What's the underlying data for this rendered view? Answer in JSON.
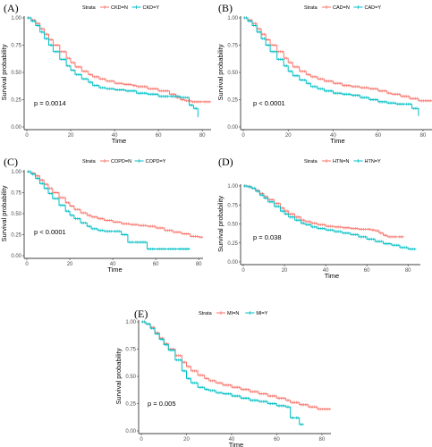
{
  "chart_data": [
    {
      "panel": "(A)",
      "type": "line",
      "legend_title": "Strata",
      "series": [
        {
          "name": "CKD=N",
          "color": "#F8766D",
          "x": [
            0,
            2,
            4,
            6,
            8,
            10,
            12,
            15,
            18,
            20,
            22,
            25,
            28,
            30,
            33,
            36,
            40,
            44,
            48,
            50,
            55,
            60,
            65,
            68,
            70,
            72,
            75,
            80,
            84
          ],
          "y": [
            1.0,
            0.98,
            0.95,
            0.9,
            0.85,
            0.8,
            0.75,
            0.69,
            0.63,
            0.59,
            0.55,
            0.51,
            0.48,
            0.46,
            0.44,
            0.42,
            0.4,
            0.39,
            0.38,
            0.37,
            0.35,
            0.33,
            0.3,
            0.27,
            0.25,
            0.24,
            0.23,
            0.23,
            0.23
          ]
        },
        {
          "name": "CKD=Y",
          "color": "#00BFC4",
          "x": [
            0,
            2,
            4,
            6,
            8,
            10,
            12,
            15,
            18,
            20,
            22,
            25,
            28,
            30,
            33,
            36,
            40,
            45,
            50,
            55,
            60,
            65,
            70,
            74,
            76,
            78
          ],
          "y": [
            1.0,
            0.97,
            0.93,
            0.87,
            0.81,
            0.75,
            0.69,
            0.62,
            0.56,
            0.52,
            0.48,
            0.44,
            0.41,
            0.38,
            0.36,
            0.35,
            0.34,
            0.33,
            0.31,
            0.3,
            0.28,
            0.28,
            0.27,
            0.2,
            0.17,
            0.09
          ]
        }
      ],
      "pvalue": "p = 0.0014",
      "xlabel": "Time",
      "ylabel": "Survival probability",
      "xticks": [
        0,
        20,
        40,
        60,
        80
      ],
      "yticks": [
        "0.00",
        "0.25",
        "0.50",
        "0.75",
        "1.00"
      ],
      "xlim": [
        0,
        84
      ],
      "ylim": [
        0,
        1
      ]
    },
    {
      "panel": "(B)",
      "type": "line",
      "legend_title": "Strata",
      "series": [
        {
          "name": "CAD=N",
          "color": "#F8766D",
          "x": [
            0,
            2,
            4,
            6,
            8,
            10,
            12,
            15,
            18,
            20,
            22,
            25,
            28,
            30,
            33,
            36,
            40,
            44,
            48,
            52,
            56,
            60,
            64,
            66,
            70,
            74,
            78,
            84
          ],
          "y": [
            1.0,
            0.98,
            0.95,
            0.9,
            0.85,
            0.8,
            0.75,
            0.69,
            0.63,
            0.59,
            0.55,
            0.51,
            0.48,
            0.46,
            0.44,
            0.42,
            0.4,
            0.38,
            0.37,
            0.36,
            0.35,
            0.33,
            0.31,
            0.3,
            0.28,
            0.26,
            0.24,
            0.24
          ]
        },
        {
          "name": "CAD=Y",
          "color": "#00BFC4",
          "x": [
            0,
            2,
            4,
            6,
            8,
            10,
            12,
            15,
            18,
            20,
            22,
            25,
            28,
            30,
            33,
            36,
            40,
            44,
            48,
            52,
            56,
            60,
            64,
            68,
            72,
            75,
            78
          ],
          "y": [
            1.0,
            0.97,
            0.93,
            0.87,
            0.81,
            0.75,
            0.69,
            0.62,
            0.56,
            0.51,
            0.47,
            0.43,
            0.4,
            0.37,
            0.35,
            0.33,
            0.31,
            0.3,
            0.29,
            0.27,
            0.25,
            0.23,
            0.22,
            0.21,
            0.21,
            0.17,
            0.1
          ]
        }
      ],
      "pvalue": "p < 0.0001",
      "xlabel": "Time",
      "ylabel": "Survival probability",
      "xticks": [
        0,
        20,
        40,
        60,
        80
      ],
      "yticks": [
        "0.00",
        "0.25",
        "0.50",
        "0.75",
        "1.00"
      ],
      "xlim": [
        0,
        84
      ],
      "ylim": [
        0,
        1
      ]
    },
    {
      "panel": "(C)",
      "type": "line",
      "legend_title": "Strata",
      "series": [
        {
          "name": "COPD=N",
          "color": "#F8766D",
          "x": [
            0,
            2,
            4,
            6,
            8,
            10,
            12,
            15,
            18,
            20,
            22,
            25,
            28,
            30,
            33,
            36,
            40,
            44,
            48,
            52,
            56,
            60,
            64,
            68,
            72,
            76,
            80,
            82
          ],
          "y": [
            1.0,
            0.98,
            0.95,
            0.9,
            0.85,
            0.8,
            0.75,
            0.69,
            0.63,
            0.59,
            0.55,
            0.51,
            0.48,
            0.46,
            0.44,
            0.42,
            0.4,
            0.38,
            0.37,
            0.36,
            0.35,
            0.33,
            0.3,
            0.28,
            0.26,
            0.23,
            0.22,
            0.22
          ]
        },
        {
          "name": "COPD=Y",
          "color": "#00BFC4",
          "x": [
            0,
            2,
            4,
            6,
            8,
            10,
            12,
            15,
            18,
            20,
            22,
            25,
            28,
            30,
            33,
            36,
            40,
            44,
            47,
            50,
            56,
            60,
            65,
            70,
            76
          ],
          "y": [
            1.0,
            0.97,
            0.92,
            0.86,
            0.8,
            0.74,
            0.68,
            0.6,
            0.53,
            0.48,
            0.44,
            0.39,
            0.35,
            0.32,
            0.3,
            0.29,
            0.29,
            0.25,
            0.16,
            0.16,
            0.08,
            0.08,
            0.08,
            0.08,
            0.08
          ]
        }
      ],
      "pvalue": "p < 0.0001",
      "xlabel": "Time",
      "ylabel": "Survival probability",
      "xticks": [
        0,
        20,
        40,
        60,
        80
      ],
      "yticks": [
        "0.00",
        "0.25",
        "0.50",
        "0.75",
        "1.00"
      ],
      "xlim": [
        0,
        82
      ],
      "ylim": [
        0,
        1
      ]
    },
    {
      "panel": "(D)",
      "type": "line",
      "legend_title": "Strata",
      "series": [
        {
          "name": "HTN=N",
          "color": "#F8766D",
          "x": [
            0,
            2,
            4,
            6,
            8,
            10,
            12,
            15,
            18,
            20,
            22,
            25,
            28,
            30,
            33,
            36,
            40,
            44,
            48,
            52,
            56,
            60,
            62,
            64,
            66,
            68,
            70,
            75,
            78
          ],
          "y": [
            1.0,
            0.99,
            0.97,
            0.94,
            0.9,
            0.86,
            0.82,
            0.77,
            0.71,
            0.67,
            0.63,
            0.59,
            0.55,
            0.53,
            0.51,
            0.49,
            0.47,
            0.46,
            0.45,
            0.44,
            0.43,
            0.43,
            0.42,
            0.41,
            0.38,
            0.35,
            0.33,
            0.33,
            0.33
          ]
        },
        {
          "name": "HTN=Y",
          "color": "#00BFC4",
          "x": [
            0,
            2,
            4,
            6,
            8,
            10,
            12,
            15,
            18,
            20,
            22,
            25,
            28,
            30,
            33,
            36,
            40,
            44,
            48,
            52,
            56,
            60,
            64,
            68,
            72,
            76,
            80,
            84
          ],
          "y": [
            1.0,
            0.99,
            0.97,
            0.93,
            0.88,
            0.84,
            0.79,
            0.73,
            0.67,
            0.63,
            0.59,
            0.55,
            0.51,
            0.49,
            0.46,
            0.44,
            0.42,
            0.4,
            0.38,
            0.36,
            0.33,
            0.3,
            0.27,
            0.24,
            0.22,
            0.19,
            0.17,
            0.17
          ]
        }
      ],
      "pvalue": "p = 0.038",
      "xlabel": "Time",
      "ylabel": "Survival probability",
      "xticks": [
        0,
        20,
        40,
        60,
        80
      ],
      "yticks": [
        "0.00",
        "0.25",
        "0.50",
        "0.75",
        "1.00"
      ],
      "xlim": [
        0,
        86
      ],
      "ylim": [
        0,
        1
      ]
    },
    {
      "panel": "(E)",
      "type": "line",
      "legend_title": "Strata",
      "series": [
        {
          "name": "MI=N",
          "color": "#F8766D",
          "x": [
            0,
            2,
            4,
            6,
            8,
            10,
            12,
            15,
            18,
            20,
            22,
            25,
            28,
            30,
            33,
            36,
            40,
            44,
            48,
            52,
            56,
            60,
            64,
            66,
            70,
            74,
            78,
            84
          ],
          "y": [
            1.0,
            0.98,
            0.95,
            0.9,
            0.85,
            0.8,
            0.75,
            0.69,
            0.63,
            0.59,
            0.55,
            0.51,
            0.48,
            0.46,
            0.44,
            0.42,
            0.4,
            0.38,
            0.36,
            0.34,
            0.32,
            0.3,
            0.28,
            0.26,
            0.24,
            0.22,
            0.2,
            0.2
          ]
        },
        {
          "name": "MI=Y",
          "color": "#00BFC4",
          "x": [
            0,
            2,
            4,
            6,
            8,
            10,
            12,
            15,
            18,
            20,
            22,
            25,
            28,
            30,
            33,
            36,
            40,
            44,
            48,
            52,
            56,
            60,
            64,
            66,
            68,
            70,
            72
          ],
          "y": [
            1.0,
            0.98,
            0.94,
            0.89,
            0.84,
            0.79,
            0.74,
            0.65,
            0.55,
            0.48,
            0.44,
            0.4,
            0.38,
            0.37,
            0.35,
            0.34,
            0.32,
            0.3,
            0.28,
            0.27,
            0.25,
            0.23,
            0.22,
            0.12,
            0.12,
            0.06,
            0.06
          ]
        }
      ],
      "pvalue": "p = 0.005",
      "xlabel": "Time",
      "ylabel": "Survival probability",
      "xticks": [
        0,
        20,
        40,
        60,
        80
      ],
      "yticks": [
        "0.00",
        "0.25",
        "0.50",
        "0.75",
        "1.00"
      ],
      "xlim": [
        0,
        84
      ],
      "ylim": [
        0,
        1
      ]
    }
  ]
}
